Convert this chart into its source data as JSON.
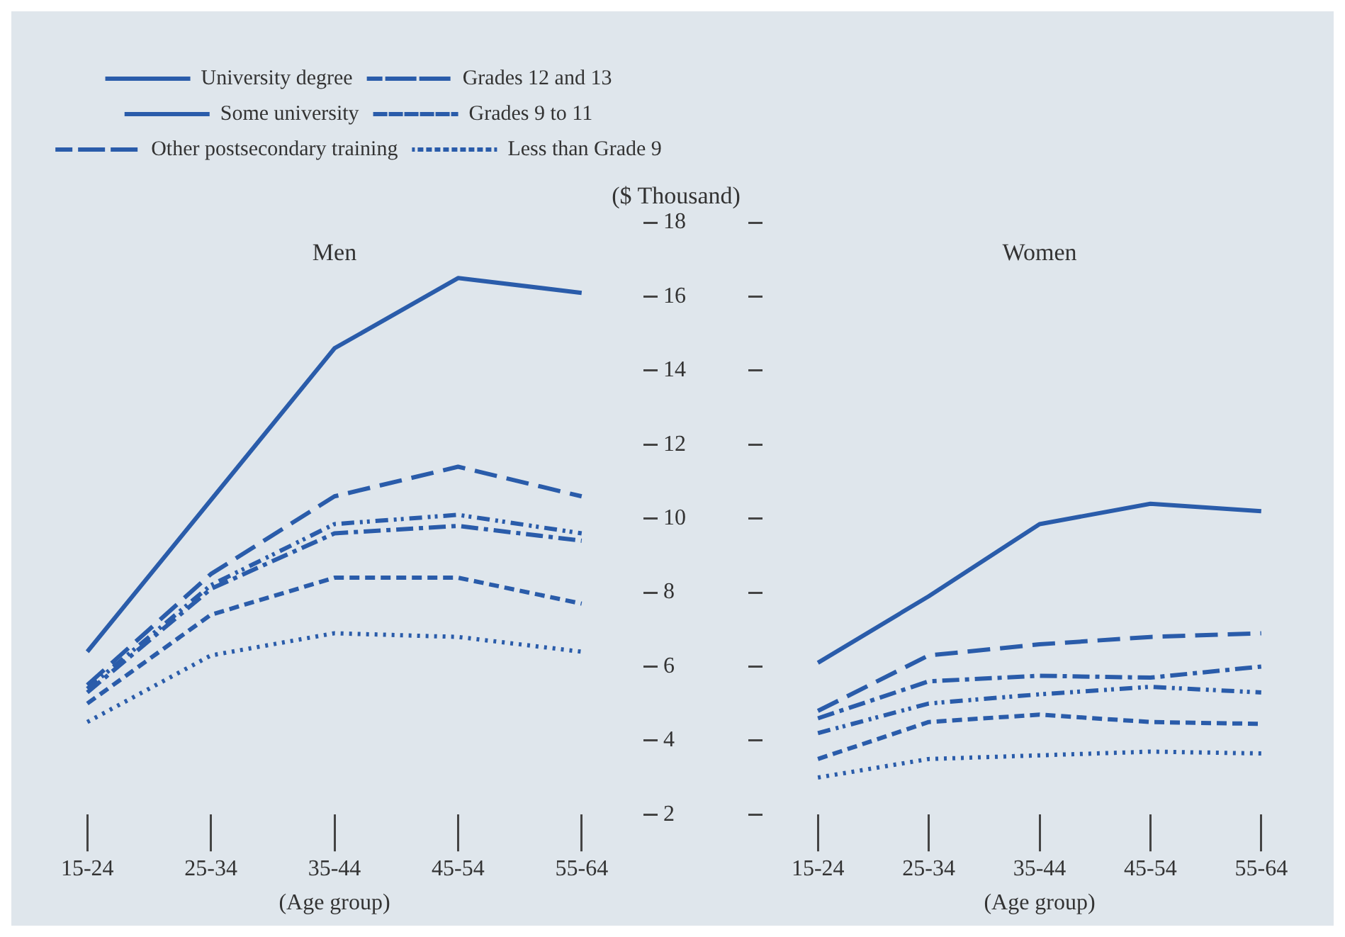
{
  "chart_data": [
    {
      "type": "line",
      "title": "Men",
      "xlabel": "(Age group)",
      "ylabel": "($ Thousand)",
      "categories": [
        "15-24",
        "25-34",
        "35-44",
        "45-54",
        "55-64"
      ],
      "ylim": [
        2,
        18
      ],
      "yticks": [
        2,
        4,
        6,
        8,
        10,
        12,
        14,
        16,
        18
      ],
      "grid": false,
      "legend": "top",
      "marker": "none",
      "series": [
        {
          "name": "University degree",
          "color": "#2a5caa",
          "line_style": "solid",
          "values": [
            6.4,
            10.5,
            14.6,
            16.5,
            16.1
          ]
        },
        {
          "name": "Grades 12 and 13",
          "color": "#2a5caa",
          "line_style": "dashed",
          "values": [
            5.4,
            8.2,
            9.85,
            10.1,
            9.6
          ]
        },
        {
          "name": "Some university",
          "color": "#2a5caa",
          "line_style": "dashed",
          "values": [
            5.5,
            8.5,
            10.6,
            11.4,
            10.6
          ]
        },
        {
          "name": "Grades 9 to 11",
          "color": "#2a5caa",
          "line_style": "dashed",
          "values": [
            5.0,
            7.4,
            8.4,
            8.4,
            7.7
          ]
        },
        {
          "name": "Other postsecondary training",
          "color": "#2a5caa",
          "line_style": "dashed",
          "values": [
            5.3,
            8.1,
            9.6,
            9.8,
            9.4
          ]
        },
        {
          "name": "Less than Grade 9",
          "color": "#2a5caa",
          "line_style": "dotted",
          "values": [
            4.5,
            6.3,
            6.9,
            6.8,
            6.4
          ]
        }
      ]
    },
    {
      "type": "line",
      "title": "Women",
      "xlabel": "(Age group)",
      "categories": [
        "15-24",
        "25-34",
        "35-44",
        "45-54",
        "55-64"
      ],
      "ylim": [
        2,
        18
      ],
      "yticks": [
        2,
        4,
        6,
        8,
        10,
        12,
        14,
        16,
        18
      ],
      "grid": false,
      "tick_labels": "x",
      "marker": "none",
      "series": [
        {
          "color": "#2a5caa",
          "line_style": "solid",
          "values": [
            6.1,
            7.9,
            9.85,
            10.4,
            10.2
          ]
        },
        {
          "color": "#2a5caa",
          "line_style": "dashed",
          "values": [
            4.2,
            5.0,
            5.25,
            5.45,
            5.3
          ]
        },
        {
          "color": "#2a5caa",
          "line_style": "dashed",
          "values": [
            4.8,
            6.3,
            6.6,
            6.8,
            6.9
          ]
        },
        {
          "color": "#2a5caa",
          "line_style": "dashed",
          "values": [
            3.5,
            4.5,
            4.7,
            4.5,
            4.45
          ]
        },
        {
          "color": "#2a5caa",
          "line_style": "dashed",
          "values": [
            4.6,
            5.6,
            5.75,
            5.7,
            6.0
          ]
        },
        {
          "color": "#2a5caa",
          "line_style": "dotted",
          "values": [
            3.0,
            3.5,
            3.6,
            3.7,
            3.65
          ]
        }
      ]
    }
  ]
}
